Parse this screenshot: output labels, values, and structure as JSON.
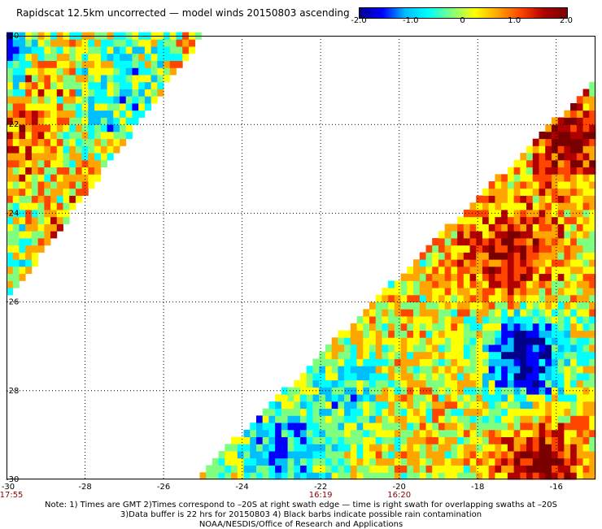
{
  "title": "Rapidscat 12.5km uncorrected — model winds 20150803 ascending",
  "colors": {
    "grid": "#000000",
    "time_label": "#8b0000",
    "scale": [
      "#00008b",
      "#0000ff",
      "#00bfff",
      "#00ffff",
      "#7fff7f",
      "#ffff00",
      "#ffa500",
      "#ff4500",
      "#b00000",
      "#7a0000"
    ]
  },
  "colorbar": {
    "min": -2.0,
    "max": 2.0,
    "tick_labels": [
      "-2.0",
      "-1.0",
      "0",
      "1.0",
      "2.0"
    ]
  },
  "chart_data": {
    "type": "heatmap",
    "title": "Rapidscat 12.5km uncorrected — model winds 20150803 ascending",
    "xlim": [
      -30,
      -15
    ],
    "ylim": [
      -30,
      -20
    ],
    "x_ticks": [
      -30,
      -28,
      -26,
      -24,
      -22,
      -20,
      -18,
      -16
    ],
    "x_tick_labels": [
      "-30",
      "-28",
      "-26",
      "-24",
      "-22",
      "-20",
      "-18",
      "-16"
    ],
    "y_ticks": [
      -20,
      -22,
      -24,
      -26,
      -28,
      -30
    ],
    "y_tick_labels": [
      "-20",
      "-22",
      "-24",
      "-26",
      "-28",
      "-30"
    ],
    "grid": true,
    "value_range": [
      -2.0,
      2.0
    ],
    "swaths": [
      {
        "name": "swath-left",
        "region": "left triangle from (-30,-20)-(-25,-20)-(-30,-26)"
      },
      {
        "name": "swath-right",
        "region": "right wedge below diagonal from (-25.2,-30) to (-15,-21)"
      }
    ],
    "time_labels": [
      {
        "lon": -30,
        "text": "17:55"
      },
      {
        "lon": -22,
        "text": "16:19"
      },
      {
        "lon": -20,
        "text": "16:20"
      }
    ]
  },
  "notes": {
    "line1": "Note: 1) Times are GMT 2)Times correspond to –20S at right swath edge — time is right swath for overlapping swaths at –20S",
    "line2": "3)Data buffer is 22 hrs for 20150803 4) Black barbs indicate possible rain contamination",
    "line3": "NOAA/NESDIS/Office of Research and Applications"
  }
}
